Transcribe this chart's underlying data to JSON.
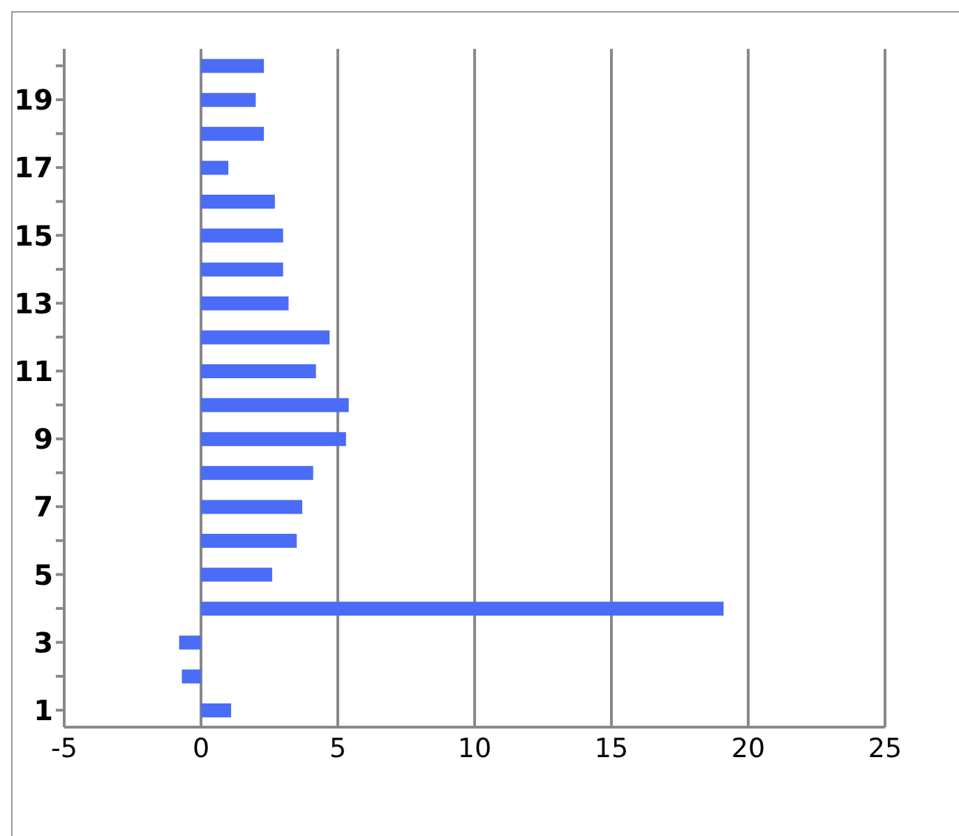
{
  "chart_data": {
    "type": "bar",
    "orientation": "horizontal",
    "categories": [
      null,
      "19",
      null,
      "17",
      null,
      "15",
      null,
      "13",
      null,
      "11",
      null,
      "9",
      null,
      "7",
      null,
      "5",
      null,
      "3",
      null,
      "1"
    ],
    "values": [
      2.3,
      2.0,
      2.3,
      1.0,
      2.7,
      3.0,
      3.0,
      3.2,
      4.7,
      4.2,
      5.4,
      5.3,
      4.1,
      3.7,
      3.5,
      2.6,
      19.1,
      -0.8,
      -0.7,
      1.1
    ],
    "color": "#4a6cf7",
    "xlim": [
      -5,
      25
    ],
    "xticks": [
      -5,
      0,
      5,
      10,
      15,
      20,
      25
    ],
    "grid": "x",
    "legend": false
  }
}
